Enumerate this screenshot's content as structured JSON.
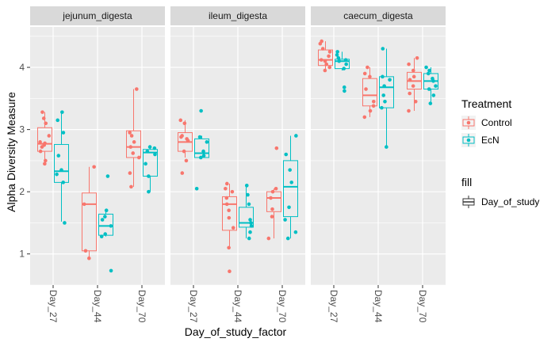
{
  "chart_data": {
    "type": "box",
    "xlabel": "Day_of_study_factor",
    "ylabel": "Alpha Diversity Measure",
    "ylim": [
      0.5,
      4.65
    ],
    "yticks": [
      1,
      2,
      3,
      4
    ],
    "categories": [
      "Day_27",
      "Day_44",
      "Day_70"
    ],
    "facets": [
      {
        "name": "jejunum_digesta",
        "groups": [
          {
            "day": "Day_27",
            "treatment": "Control",
            "min": 2.45,
            "q1": 2.65,
            "median": 2.77,
            "q3": 3.03,
            "max": 3.28,
            "points": [
              2.45,
              2.5,
              2.65,
              2.72,
              2.75,
              2.78,
              2.8,
              2.9,
              3.1,
              3.18,
              3.28
            ]
          },
          {
            "day": "Day_27",
            "treatment": "EcN",
            "min": 1.52,
            "q1": 2.15,
            "median": 2.33,
            "q3": 2.76,
            "max": 3.28,
            "points": [
              1.5,
              2.15,
              2.28,
              2.35,
              2.58,
              2.95,
              3.15,
              3.28
            ]
          },
          {
            "day": "Day_44",
            "treatment": "Control",
            "min": 0.93,
            "q1": 1.05,
            "median": 1.8,
            "q3": 1.98,
            "max": 2.4,
            "points": [
              0.93,
              1.05,
              1.8,
              2.4
            ]
          },
          {
            "day": "Day_44",
            "treatment": "EcN",
            "min": 1.28,
            "q1": 1.3,
            "median": 1.45,
            "q3": 1.64,
            "max": 1.7,
            "points": [
              0.73,
              1.28,
              1.32,
              1.45,
              1.55,
              1.6,
              1.7,
              2.25
            ]
          },
          {
            "day": "Day_70",
            "treatment": "Control",
            "min": 2.08,
            "q1": 2.55,
            "median": 2.72,
            "q3": 2.98,
            "max": 3.65,
            "points": [
              2.08,
              2.3,
              2.55,
              2.62,
              2.72,
              2.8,
              2.9,
              2.95,
              3.65
            ]
          },
          {
            "day": "Day_70",
            "treatment": "EcN",
            "min": 2.0,
            "q1": 2.25,
            "median": 2.63,
            "q3": 2.68,
            "max": 2.72,
            "points": [
              2.0,
              2.25,
              2.45,
              2.6,
              2.65,
              2.7,
              2.72
            ]
          }
        ]
      },
      {
        "name": "ileum_digesta",
        "groups": [
          {
            "day": "Day_27",
            "treatment": "Control",
            "min": 2.55,
            "q1": 2.65,
            "median": 2.8,
            "q3": 2.95,
            "max": 3.15,
            "points": [
              2.3,
              2.5,
              2.65,
              2.82,
              2.85,
              2.88,
              2.9,
              3.1,
              3.15
            ]
          },
          {
            "day": "Day_27",
            "treatment": "EcN",
            "min": 2.55,
            "q1": 2.55,
            "median": 2.62,
            "q3": 2.85,
            "max": 2.9,
            "points": [
              2.05,
              2.55,
              2.58,
              2.65,
              2.8,
              2.88,
              3.3
            ]
          },
          {
            "day": "Day_44",
            "treatment": "Control",
            "min": 1.1,
            "q1": 1.38,
            "median": 1.8,
            "q3": 1.92,
            "max": 2.13,
            "points": [
              0.72,
              1.1,
              1.42,
              1.58,
              1.7,
              1.8,
              1.9,
              2.0,
              2.05,
              2.13
            ]
          },
          {
            "day": "Day_44",
            "treatment": "EcN",
            "min": 1.25,
            "q1": 1.43,
            "median": 1.5,
            "q3": 1.75,
            "max": 2.1,
            "points": [
              1.25,
              1.35,
              1.45,
              1.5,
              1.55,
              1.8,
              1.95,
              2.1
            ]
          },
          {
            "day": "Day_70",
            "treatment": "Control",
            "min": 1.25,
            "q1": 1.68,
            "median": 1.9,
            "q3": 2.0,
            "max": 2.05,
            "points": [
              1.25,
              1.6,
              1.72,
              1.9,
              2.0,
              2.05,
              2.7
            ]
          },
          {
            "day": "Day_70",
            "treatment": "EcN",
            "min": 1.25,
            "q1": 1.6,
            "median": 2.08,
            "q3": 2.5,
            "max": 2.9,
            "points": [
              1.25,
              1.35,
              1.55,
              1.75,
              2.15,
              2.35,
              2.6,
              2.9
            ]
          }
        ]
      },
      {
        "name": "caecum_digesta",
        "groups": [
          {
            "day": "Day_27",
            "treatment": "Control",
            "min": 3.95,
            "q1": 4.03,
            "median": 4.12,
            "q3": 4.28,
            "max": 4.42,
            "points": [
              3.95,
              4.0,
              4.05,
              4.1,
              4.12,
              4.18,
              4.25,
              4.3,
              4.38,
              4.42
            ]
          },
          {
            "day": "Day_27",
            "treatment": "EcN",
            "min": 3.95,
            "q1": 3.98,
            "median": 4.1,
            "q3": 4.13,
            "max": 4.25,
            "points": [
              3.62,
              3.68,
              3.98,
              4.05,
              4.1,
              4.12,
              4.15,
              4.2,
              4.25
            ]
          },
          {
            "day": "Day_44",
            "treatment": "Control",
            "min": 3.2,
            "q1": 3.38,
            "median": 3.55,
            "q3": 3.82,
            "max": 4.0,
            "points": [
              3.2,
              3.3,
              3.38,
              3.45,
              3.65,
              3.85,
              3.9,
              4.0
            ]
          },
          {
            "day": "Day_44",
            "treatment": "EcN",
            "min": 2.72,
            "q1": 3.35,
            "median": 3.68,
            "q3": 3.85,
            "max": 4.3,
            "points": [
              2.72,
              3.35,
              3.45,
              3.55,
              3.7,
              3.8,
              3.85,
              4.3
            ]
          },
          {
            "day": "Day_70",
            "treatment": "Control",
            "min": 3.3,
            "q1": 3.65,
            "median": 3.78,
            "q3": 3.92,
            "max": 4.15,
            "points": [
              3.3,
              3.45,
              3.58,
              3.7,
              3.8,
              3.85,
              3.95,
              4.05,
              4.15
            ]
          },
          {
            "day": "Day_70",
            "treatment": "EcN",
            "min": 3.42,
            "q1": 3.65,
            "median": 3.78,
            "q3": 3.9,
            "max": 4.0,
            "points": [
              3.42,
              3.55,
              3.65,
              3.7,
              3.78,
              3.82,
              3.9,
              3.95,
              4.0
            ]
          }
        ]
      }
    ],
    "legend": {
      "placement": "right",
      "treatment": {
        "title": "Treatment",
        "entries": [
          {
            "label": "Control",
            "color": "#F8766D"
          },
          {
            "label": "EcN",
            "color": "#00BFC4"
          }
        ]
      },
      "fill": {
        "title": "fill",
        "entries": [
          {
            "label": "Day_of_study"
          }
        ]
      }
    },
    "colors": {
      "panel_bg": "#EBEBEB",
      "grid": "#FFFFFF",
      "strip_bg": "#D9D9D9",
      "Control": "#F8766D",
      "EcN": "#00BFC4"
    },
    "grid": true
  }
}
